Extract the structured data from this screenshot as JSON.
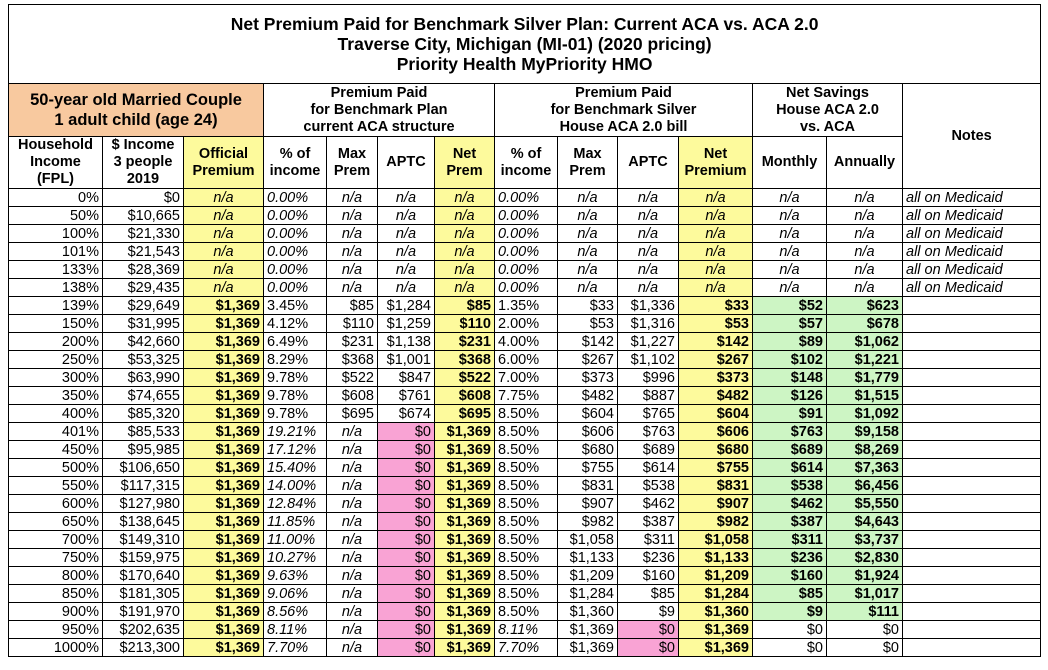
{
  "header": {
    "title": [
      "Net Premium Paid for Benchmark Silver Plan: Current ACA vs. ACA 2.0",
      "Traverse City, Michigan (MI-01) (2020 pricing)",
      "Priority Health MyPriority HMO"
    ],
    "household": [
      "50-year old Married Couple",
      "1 adult child (age 24)"
    ],
    "groups": [
      [
        "Premium Paid",
        "for Benchmark Plan",
        "current ACA structure"
      ],
      [
        "Premium Paid",
        "for Benchmark Silver",
        "House ACA 2.0 bill"
      ],
      [
        "Net Savings",
        "House ACA 2.0",
        "vs. ACA"
      ]
    ],
    "notes": "Notes",
    "columns": [
      [
        "Household",
        "Income",
        "(FPL)"
      ],
      [
        "$ Income",
        "3 people",
        "2019"
      ],
      [
        "Official",
        "Premium"
      ],
      [
        "% of",
        "income"
      ],
      [
        "Max",
        "Prem"
      ],
      [
        "APTC"
      ],
      [
        "Net",
        "Prem"
      ],
      [
        "% of",
        "income"
      ],
      [
        "Max",
        "Prem"
      ],
      [
        "APTC"
      ],
      [
        "Net",
        "Premium"
      ],
      [
        "Monthly"
      ],
      [
        "Annually"
      ]
    ]
  },
  "table": {
    "rows": [
      [
        "0%",
        "$0",
        "n/a",
        "0.00%",
        "n/a",
        "n/a",
        "n/a",
        "0.00%",
        "n/a",
        "n/a",
        "n/a",
        "n/a",
        "n/a",
        "all on Medicaid"
      ],
      [
        "50%",
        "$10,665",
        "n/a",
        "0.00%",
        "n/a",
        "n/a",
        "n/a",
        "0.00%",
        "n/a",
        "n/a",
        "n/a",
        "n/a",
        "n/a",
        "all on Medicaid"
      ],
      [
        "100%",
        "$21,330",
        "n/a",
        "0.00%",
        "n/a",
        "n/a",
        "n/a",
        "0.00%",
        "n/a",
        "n/a",
        "n/a",
        "n/a",
        "n/a",
        "all on Medicaid"
      ],
      [
        "101%",
        "$21,543",
        "n/a",
        "0.00%",
        "n/a",
        "n/a",
        "n/a",
        "0.00%",
        "n/a",
        "n/a",
        "n/a",
        "n/a",
        "n/a",
        "all on Medicaid"
      ],
      [
        "133%",
        "$28,369",
        "n/a",
        "0.00%",
        "n/a",
        "n/a",
        "n/a",
        "0.00%",
        "n/a",
        "n/a",
        "n/a",
        "n/a",
        "n/a",
        "all on Medicaid"
      ],
      [
        "138%",
        "$29,435",
        "n/a",
        "0.00%",
        "n/a",
        "n/a",
        "n/a",
        "0.00%",
        "n/a",
        "n/a",
        "n/a",
        "n/a",
        "n/a",
        "all on Medicaid"
      ],
      [
        "139%",
        "$29,649",
        "$1,369",
        "3.45%",
        "$85",
        "$1,284",
        "$85",
        "1.35%",
        "$33",
        "$1,336",
        "$33",
        "$52",
        "$623"
      ],
      [
        "150%",
        "$31,995",
        "$1,369",
        "4.12%",
        "$110",
        "$1,259",
        "$110",
        "2.00%",
        "$53",
        "$1,316",
        "$53",
        "$57",
        "$678"
      ],
      [
        "200%",
        "$42,660",
        "$1,369",
        "6.49%",
        "$231",
        "$1,138",
        "$231",
        "4.00%",
        "$142",
        "$1,227",
        "$142",
        "$89",
        "$1,062"
      ],
      [
        "250%",
        "$53,325",
        "$1,369",
        "8.29%",
        "$368",
        "$1,001",
        "$368",
        "6.00%",
        "$267",
        "$1,102",
        "$267",
        "$102",
        "$1,221"
      ],
      [
        "300%",
        "$63,990",
        "$1,369",
        "9.78%",
        "$522",
        "$847",
        "$522",
        "7.00%",
        "$373",
        "$996",
        "$373",
        "$148",
        "$1,779"
      ],
      [
        "350%",
        "$74,655",
        "$1,369",
        "9.78%",
        "$608",
        "$761",
        "$608",
        "7.75%",
        "$482",
        "$887",
        "$482",
        "$126",
        "$1,515"
      ],
      [
        "400%",
        "$85,320",
        "$1,369",
        "9.78%",
        "$695",
        "$674",
        "$695",
        "8.50%",
        "$604",
        "$765",
        "$604",
        "$91",
        "$1,092"
      ],
      [
        "401%",
        "$85,533",
        "$1,369",
        "19.21%",
        "n/a",
        "$0",
        "$1,369",
        "8.50%",
        "$606",
        "$763",
        "$606",
        "$763",
        "$9,158"
      ],
      [
        "450%",
        "$95,985",
        "$1,369",
        "17.12%",
        "n/a",
        "$0",
        "$1,369",
        "8.50%",
        "$680",
        "$689",
        "$680",
        "$689",
        "$8,269"
      ],
      [
        "500%",
        "$106,650",
        "$1,369",
        "15.40%",
        "n/a",
        "$0",
        "$1,369",
        "8.50%",
        "$755",
        "$614",
        "$755",
        "$614",
        "$7,363"
      ],
      [
        "550%",
        "$117,315",
        "$1,369",
        "14.00%",
        "n/a",
        "$0",
        "$1,369",
        "8.50%",
        "$831",
        "$538",
        "$831",
        "$538",
        "$6,456"
      ],
      [
        "600%",
        "$127,980",
        "$1,369",
        "12.84%",
        "n/a",
        "$0",
        "$1,369",
        "8.50%",
        "$907",
        "$462",
        "$907",
        "$462",
        "$5,550"
      ],
      [
        "650%",
        "$138,645",
        "$1,369",
        "11.85%",
        "n/a",
        "$0",
        "$1,369",
        "8.50%",
        "$982",
        "$387",
        "$982",
        "$387",
        "$4,643"
      ],
      [
        "700%",
        "$149,310",
        "$1,369",
        "11.00%",
        "n/a",
        "$0",
        "$1,369",
        "8.50%",
        "$1,058",
        "$311",
        "$1,058",
        "$311",
        "$3,737"
      ],
      [
        "750%",
        "$159,975",
        "$1,369",
        "10.27%",
        "n/a",
        "$0",
        "$1,369",
        "8.50%",
        "$1,133",
        "$236",
        "$1,133",
        "$236",
        "$2,830"
      ],
      [
        "800%",
        "$170,640",
        "$1,369",
        "9.63%",
        "n/a",
        "$0",
        "$1,369",
        "8.50%",
        "$1,209",
        "$160",
        "$1,209",
        "$160",
        "$1,924"
      ],
      [
        "850%",
        "$181,305",
        "$1,369",
        "9.06%",
        "n/a",
        "$0",
        "$1,369",
        "8.50%",
        "$1,284",
        "$85",
        "$1,284",
        "$85",
        "$1,017"
      ],
      [
        "900%",
        "$191,970",
        "$1,369",
        "8.56%",
        "n/a",
        "$0",
        "$1,369",
        "8.50%",
        "$1,360",
        "$9",
        "$1,360",
        "$9",
        "$111"
      ],
      [
        "950%",
        "$202,635",
        "$1,369",
        "8.11%",
        "n/a",
        "$0",
        "$1,369",
        "8.11%",
        "$1,369",
        "$0",
        "$1,369",
        "$0",
        "$0"
      ],
      [
        "1000%",
        "$213,300",
        "$1,369",
        "7.70%",
        "n/a",
        "$0",
        "$1,369",
        "7.70%",
        "$1,369",
        "$0",
        "$1,369",
        "$0",
        "$0"
      ]
    ]
  }
}
